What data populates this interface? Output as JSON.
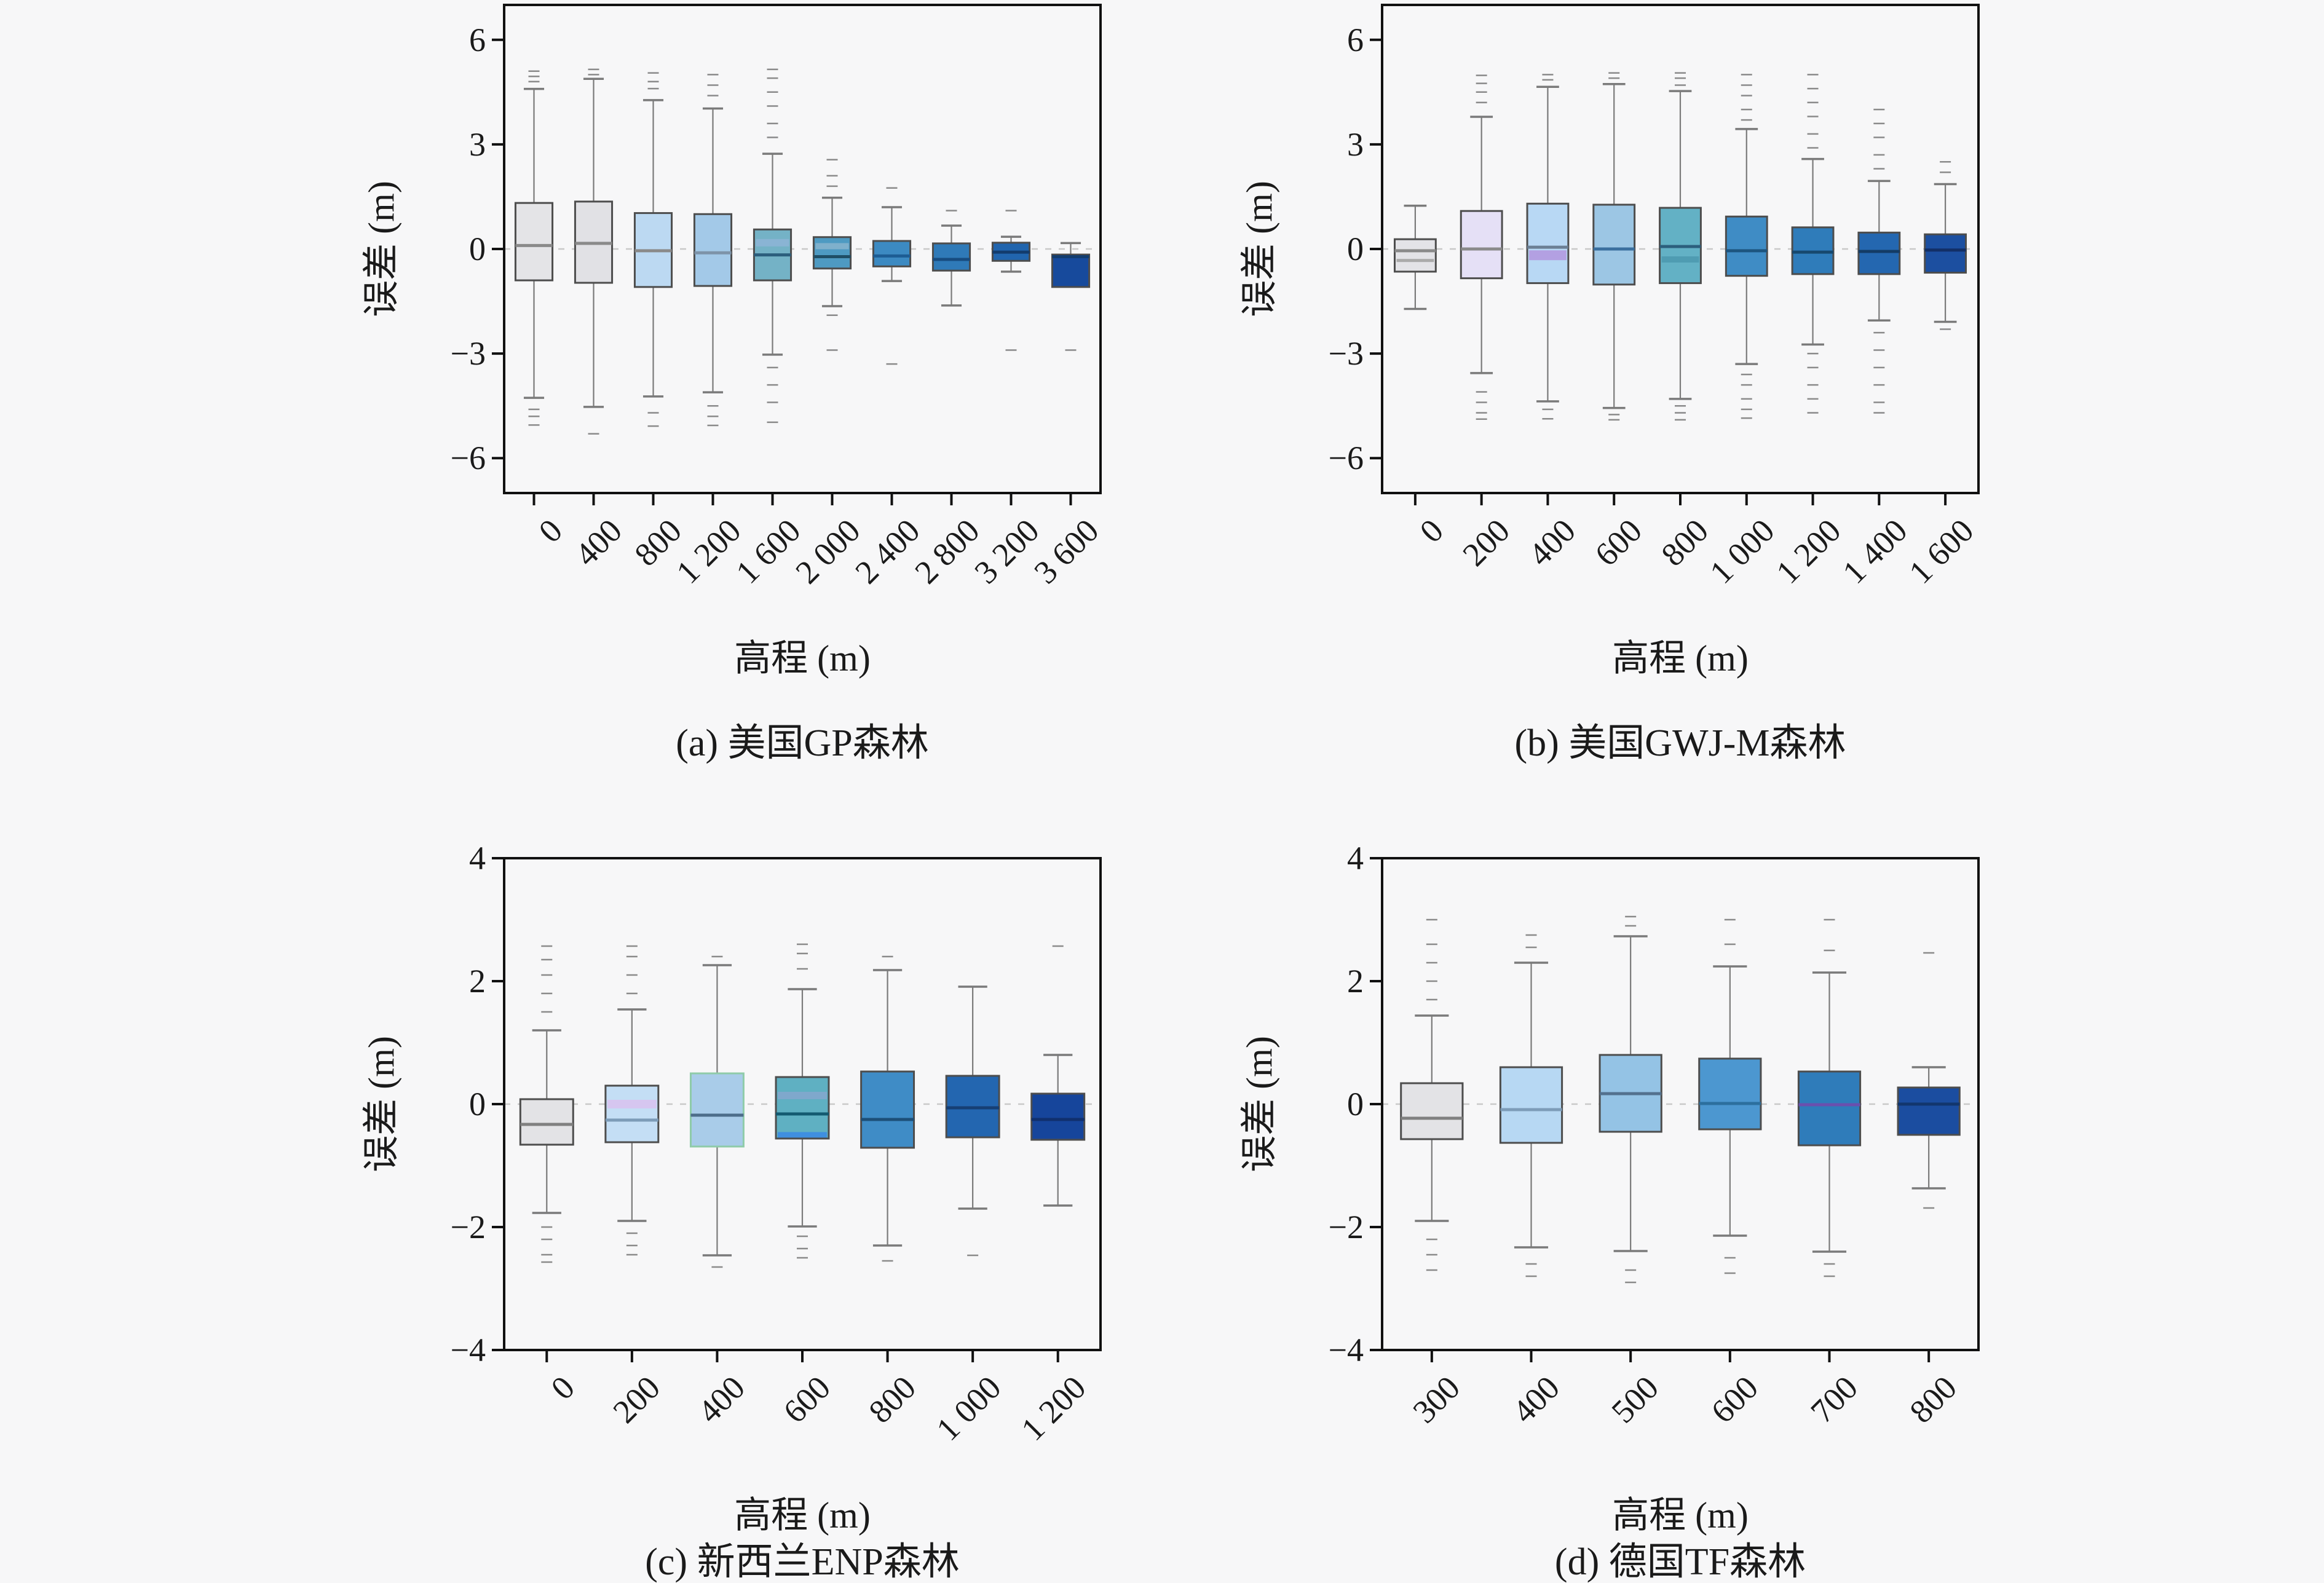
{
  "figure": {
    "background": "#f7f7f8",
    "colors": {
      "frame": "#111111",
      "box_border": "#4d4d4d",
      "whisker": "#7a7a7a",
      "outlier": "#8a8a8a",
      "zero_line": "#c9c9c9",
      "text": "#1a1a1a"
    }
  },
  "chart_data": [
    {
      "id": "a",
      "type": "box",
      "caption": "(a) 美国GP森林",
      "xlabel": "高程 (m)",
      "ylabel": "误差 (m)",
      "ylim": [
        -7,
        7
      ],
      "yticks": [
        6,
        3,
        0,
        -3,
        -6
      ],
      "grid": "zero-line-dashed",
      "legend": "none",
      "categories": [
        "0",
        "400",
        "800",
        "1 200",
        "1 600",
        "2 000",
        "2 400",
        "2 800",
        "3 200",
        "3 600"
      ],
      "boxes": [
        {
          "q1": -0.9,
          "median": 0.1,
          "q3": 1.32,
          "whislo": -4.27,
          "whishi": 4.59,
          "fill": "#e4e4e7",
          "median_color": "#8a8a8a",
          "outliers_above": [
            4.8,
            4.95,
            5.1
          ],
          "outliers_below": [
            -4.6,
            -4.8,
            -5.05
          ]
        },
        {
          "q1": -0.97,
          "median": 0.16,
          "q3": 1.36,
          "whislo": -4.53,
          "whishi": 4.88,
          "fill": "#e1e1e5",
          "median_color": "#8a8a8a",
          "outliers_above": [
            5.0,
            5.15
          ],
          "outliers_below": [
            -5.3
          ]
        },
        {
          "q1": -1.09,
          "median": -0.05,
          "q3": 1.03,
          "whislo": -4.23,
          "whishi": 4.27,
          "fill": "#bcd9f2",
          "median_color": "#8a8a8a",
          "outliers_above": [
            4.6,
            4.8,
            5.05
          ],
          "outliers_below": [
            -4.7,
            -5.08
          ]
        },
        {
          "q1": -1.06,
          "median": -0.11,
          "q3": 1.0,
          "whislo": -4.11,
          "whishi": 4.03,
          "fill": "#a3c9e8",
          "median_color": "#7d93a8",
          "outliers_above": [
            4.4,
            4.7,
            5.0
          ],
          "outliers_below": [
            -4.5,
            -4.8,
            -5.06
          ]
        },
        {
          "q1": -0.9,
          "median": -0.17,
          "q3": 0.56,
          "whislo": -3.03,
          "whishi": 2.73,
          "fill": "#74b2c6",
          "median_color": "#2c5f7d",
          "bands": [
            {
              "v": 0.18,
              "color": "#8ab4d4",
              "h": 12
            }
          ],
          "outliers_above": [
            3.2,
            3.6,
            4.1,
            4.5,
            4.9,
            5.15
          ],
          "outliers_below": [
            -3.4,
            -3.9,
            -4.4,
            -4.97
          ]
        },
        {
          "q1": -0.56,
          "median": -0.22,
          "q3": 0.34,
          "whislo": -1.64,
          "whishi": 1.47,
          "fill": "#4e9ac2",
          "median_color": "#1f4e66",
          "bands": [
            {
              "v": 0.08,
              "color": "#7fb0cc",
              "h": 10
            }
          ],
          "outliers_above": [
            1.8,
            2.1,
            2.56
          ],
          "outliers_below": [
            -1.9,
            -2.9
          ]
        },
        {
          "q1": -0.5,
          "median": -0.2,
          "q3": 0.23,
          "whislo": -0.92,
          "whishi": 1.2,
          "fill": "#3c8ac2",
          "median_color": "#1d5d94",
          "outliers_above": [
            1.75
          ],
          "outliers_below": [
            -3.3
          ]
        },
        {
          "q1": -0.62,
          "median": -0.3,
          "q3": 0.16,
          "whislo": -1.62,
          "whishi": 0.67,
          "fill": "#2f7ab8",
          "median_color": "#174c80",
          "outliers_above": [
            1.1
          ],
          "outliers_below": []
        },
        {
          "q1": -0.34,
          "median": -0.09,
          "q3": 0.18,
          "whislo": -0.65,
          "whishi": 0.35,
          "fill": "#2165ae",
          "median_color": "#123c6e",
          "outliers_above": [
            1.1
          ],
          "outliers_below": [
            -2.9
          ]
        },
        {
          "q1": -1.09,
          "median": -0.22,
          "q3": -0.16,
          "whislo": -1.09,
          "whishi": 0.17,
          "fill": "#174a9c",
          "median_color": "#123c6e",
          "outliers_above": [],
          "outliers_below": [
            -2.9
          ]
        }
      ]
    },
    {
      "id": "b",
      "type": "box",
      "caption": "(b) 美国GWJ-M森林",
      "xlabel": "高程 (m)",
      "ylabel": "误差 (m)",
      "ylim": [
        -7,
        7
      ],
      "yticks": [
        6,
        3,
        0,
        -3,
        -6
      ],
      "grid": "zero-line-dashed",
      "legend": "none",
      "categories": [
        "0",
        "200",
        "400",
        "600",
        "800",
        "1 000",
        "1 200",
        "1 400",
        "1 600"
      ],
      "boxes": [
        {
          "q1": -0.65,
          "median": -0.05,
          "q3": 0.28,
          "whislo": -1.72,
          "whishi": 1.24,
          "fill": "#e3e3e7",
          "median_color": "#8a8a8a",
          "bands": [
            {
              "v": -0.33,
              "color": "#aaaaaa",
              "h": 5
            }
          ],
          "outliers_above": [],
          "outliers_below": []
        },
        {
          "q1": -0.84,
          "median": 0.0,
          "q3": 1.09,
          "whislo": -3.56,
          "whishi": 3.79,
          "fill": "#e5e0f6",
          "median_color": "#8a8a8a",
          "outliers_above": [
            4.2,
            4.5,
            4.75,
            4.98
          ],
          "outliers_below": [
            -4.1,
            -4.4,
            -4.7,
            -4.88
          ]
        },
        {
          "q1": -0.98,
          "median": 0.05,
          "q3": 1.3,
          "whislo": -4.37,
          "whishi": 4.65,
          "fill": "#b8d8f4",
          "median_color": "#6b7f94",
          "bands": [
            {
              "v": -0.18,
              "color": "#b3a0e2",
              "h": 16
            }
          ],
          "outliers_above": [
            4.85,
            5.0
          ],
          "outliers_below": [
            -4.6,
            -4.87
          ]
        },
        {
          "q1": -1.02,
          "median": 0.0,
          "q3": 1.27,
          "whislo": -4.56,
          "whishi": 4.73,
          "fill": "#9cc6e4",
          "median_color": "#3a6f9e",
          "outliers_above": [
            4.9,
            5.05
          ],
          "outliers_below": [
            -4.75,
            -4.9
          ]
        },
        {
          "q1": -0.98,
          "median": 0.07,
          "q3": 1.18,
          "whislo": -4.3,
          "whishi": 4.53,
          "fill": "#63b1c5",
          "median_color": "#2c5f7d",
          "bands": [
            {
              "v": -0.3,
              "color": "#4f9cb2",
              "h": 10
            }
          ],
          "outliers_above": [
            4.7,
            4.9,
            5.05
          ],
          "outliers_below": [
            -4.5,
            -4.7,
            -4.9
          ]
        },
        {
          "q1": -0.77,
          "median": -0.05,
          "q3": 0.93,
          "whislo": -3.3,
          "whishi": 3.44,
          "fill": "#3f8cc5",
          "median_color": "#1d5580",
          "outliers_above": [
            3.7,
            4.0,
            4.4,
            4.7,
            5.0
          ],
          "outliers_below": [
            -3.6,
            -3.9,
            -4.3,
            -4.6,
            -4.85
          ]
        },
        {
          "q1": -0.72,
          "median": -0.09,
          "q3": 0.62,
          "whislo": -2.74,
          "whishi": 2.58,
          "fill": "#2f7cba",
          "median_color": "#17486e",
          "outliers_above": [
            2.9,
            3.3,
            3.8,
            4.2,
            4.6,
            5.0
          ],
          "outliers_below": [
            -3.0,
            -3.4,
            -3.9,
            -4.3,
            -4.7
          ]
        },
        {
          "q1": -0.72,
          "median": -0.07,
          "q3": 0.47,
          "whislo": -2.05,
          "whishi": 1.95,
          "fill": "#2467b0",
          "median_color": "#143c66",
          "outliers_above": [
            2.3,
            2.7,
            3.2,
            3.6,
            4.0
          ],
          "outliers_below": [
            -2.4,
            -2.9,
            -3.4,
            -3.9,
            -4.4,
            -4.7
          ]
        },
        {
          "q1": -0.68,
          "median": -0.03,
          "q3": 0.42,
          "whislo": -2.09,
          "whishi": 1.86,
          "fill": "#1c4fa0",
          "median_color": "#122f66",
          "outliers_above": [
            2.2,
            2.5
          ],
          "outliers_below": [
            -2.3
          ]
        }
      ]
    },
    {
      "id": "c",
      "type": "box",
      "caption": "(c) 新西兰ENP森林",
      "xlabel": "高程 (m)",
      "ylabel": "误差 (m)",
      "ylim": [
        -4,
        4
      ],
      "yticks": [
        4,
        2,
        0,
        -2,
        -4
      ],
      "grid": "zero-line-dashed",
      "legend": "none",
      "categories": [
        "0",
        "200",
        "400",
        "600",
        "800",
        "1 000",
        "1 200"
      ],
      "boxes": [
        {
          "q1": -0.66,
          "median": -0.33,
          "q3": 0.08,
          "whislo": -1.77,
          "whishi": 1.2,
          "fill": "#e3e3e6",
          "median_color": "#808080",
          "outliers_above": [
            1.5,
            1.8,
            2.1,
            2.35,
            2.57
          ],
          "outliers_below": [
            -2.0,
            -2.2,
            -2.45,
            -2.57
          ]
        },
        {
          "q1": -0.62,
          "median": -0.26,
          "q3": 0.3,
          "whislo": -1.9,
          "whishi": 1.54,
          "fill": "#c4def5",
          "median_color": "#7d9cb8",
          "bands": [
            {
              "v": 0.0,
              "color": "#d6c6f0",
              "h": 14
            }
          ],
          "outliers_above": [
            1.8,
            2.1,
            2.4,
            2.57
          ],
          "outliers_below": [
            -2.1,
            -2.3,
            -2.45
          ]
        },
        {
          "q1": -0.69,
          "median": -0.18,
          "q3": 0.5,
          "whislo": -2.46,
          "whishi": 2.26,
          "fill": "#a9cce9",
          "border": "#8fcba9",
          "median_color": "#4d6d8a",
          "outliers_above": [
            2.4
          ],
          "outliers_below": [
            -2.65
          ]
        },
        {
          "q1": -0.56,
          "median": -0.16,
          "q3": 0.44,
          "whislo": -1.99,
          "whishi": 1.87,
          "fill": "#5fb0c2",
          "median_color": "#135a70",
          "bands": [
            {
              "v": -0.5,
              "color": "#3f8fe0",
              "h": 9
            },
            {
              "v": 0.14,
              "color": "#7fa8cc",
              "h": 12
            }
          ],
          "outliers_above": [
            2.2,
            2.45,
            2.6
          ],
          "outliers_below": [
            -2.15,
            -2.35,
            -2.5
          ]
        },
        {
          "q1": -0.71,
          "median": -0.25,
          "q3": 0.53,
          "whislo": -2.3,
          "whishi": 2.18,
          "fill": "#3f8cc6",
          "median_color": "#1d4f78",
          "outliers_above": [
            2.4
          ],
          "outliers_below": [
            -2.55
          ]
        },
        {
          "q1": -0.54,
          "median": -0.06,
          "q3": 0.46,
          "whislo": -1.7,
          "whishi": 1.91,
          "fill": "#2366b0",
          "median_color": "#163f74",
          "outliers_above": [],
          "outliers_below": [
            -2.46
          ]
        },
        {
          "q1": -0.58,
          "median": -0.25,
          "q3": 0.17,
          "whislo": -1.65,
          "whishi": 0.8,
          "fill": "#16459b",
          "median_color": "#10306e",
          "outliers_above": [
            2.57
          ],
          "outliers_below": []
        }
      ]
    },
    {
      "id": "d",
      "type": "box",
      "caption": "(d) 德国TF森林",
      "xlabel": "高程 (m)",
      "ylabel": "误差 (m)",
      "ylim": [
        -4,
        4
      ],
      "yticks": [
        4,
        2,
        0,
        -2,
        -4
      ],
      "grid": "zero-line-dashed",
      "legend": "none",
      "categories": [
        "300",
        "400",
        "500",
        "600",
        "700",
        "800"
      ],
      "boxes": [
        {
          "q1": -0.57,
          "median": -0.23,
          "q3": 0.34,
          "whislo": -1.9,
          "whishi": 1.44,
          "fill": "#e3e3e6",
          "median_color": "#808080",
          "outliers_above": [
            1.7,
            2.0,
            2.3,
            2.6,
            3.0
          ],
          "outliers_below": [
            -2.2,
            -2.45,
            -2.7
          ]
        },
        {
          "q1": -0.63,
          "median": -0.09,
          "q3": 0.6,
          "whislo": -2.33,
          "whishi": 2.3,
          "fill": "#b7d8f3",
          "median_color": "#7d9cb8",
          "outliers_above": [
            2.55,
            2.75
          ],
          "outliers_below": [
            -2.6,
            -2.8
          ]
        },
        {
          "q1": -0.45,
          "median": 0.17,
          "q3": 0.8,
          "whislo": -2.39,
          "whishi": 2.73,
          "fill": "#94c3e5",
          "median_color": "#53718e",
          "outliers_above": [
            2.9,
            3.05
          ],
          "outliers_below": [
            -2.7,
            -2.9
          ]
        },
        {
          "q1": -0.41,
          "median": 0.01,
          "q3": 0.74,
          "whislo": -2.14,
          "whishi": 2.24,
          "fill": "#4c97d0",
          "median_color": "#2c6f9e",
          "outliers_above": [
            2.6,
            3.0
          ],
          "outliers_below": [
            -2.5,
            -2.75
          ]
        },
        {
          "q1": -0.67,
          "median": -0.01,
          "q3": 0.53,
          "whislo": -2.4,
          "whishi": 2.14,
          "fill": "#2f7cba",
          "median_color": "#6a4fae",
          "outliers_above": [
            2.5,
            3.0
          ],
          "outliers_below": [
            -2.6,
            -2.8
          ]
        },
        {
          "q1": -0.5,
          "median": 0.0,
          "q3": 0.27,
          "whislo": -1.37,
          "whishi": 0.6,
          "fill": "#1b4da0",
          "median_color": "#12366e",
          "outliers_above": [
            2.46
          ],
          "outliers_below": [
            -1.69
          ]
        }
      ]
    }
  ]
}
